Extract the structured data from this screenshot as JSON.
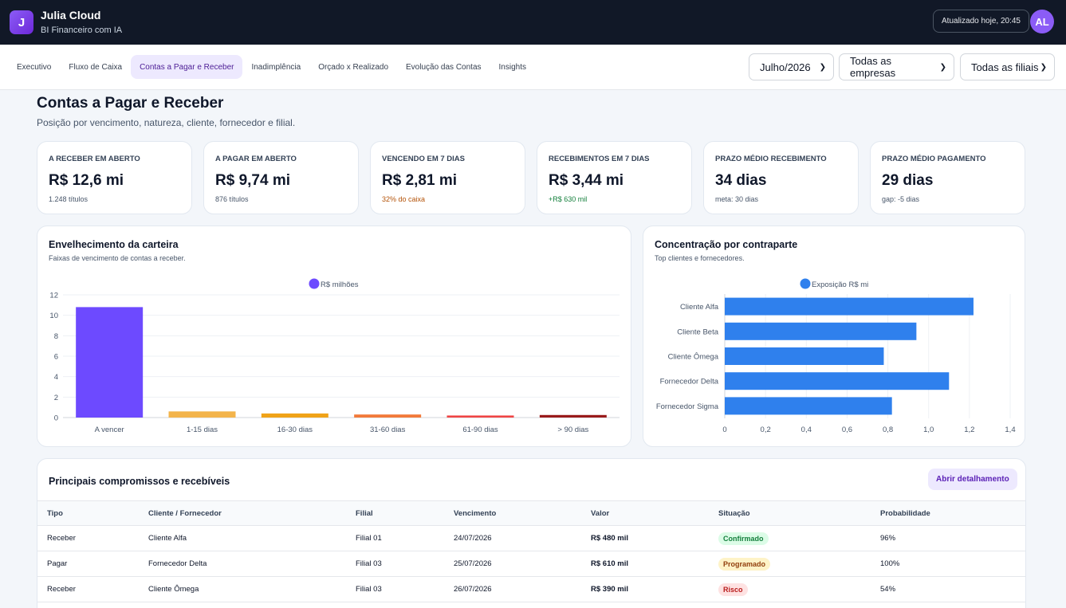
{
  "header": {
    "logo_letter": "J",
    "title": "Julia Cloud",
    "subtitle": "BI Financeiro com IA",
    "updated": "Atualizado hoje, 20:45",
    "avatar": "AL"
  },
  "nav": {
    "tabs": [
      {
        "label": "Executivo",
        "active": false
      },
      {
        "label": "Fluxo de Caixa",
        "active": false
      },
      {
        "label": "Contas a Pagar e Receber",
        "active": true
      },
      {
        "label": "Inadimplência",
        "active": false
      },
      {
        "label": "Orçado x Realizado",
        "active": false
      },
      {
        "label": "Evolução das Contas",
        "active": false
      },
      {
        "label": "Insights",
        "active": false
      }
    ],
    "filters": {
      "period": "Julho/2026",
      "company": "Todas as empresas",
      "branch": "Todas as filiais"
    }
  },
  "page": {
    "title": "Contas a Pagar e Receber",
    "subtitle": "Posição por vencimento, natureza, cliente, fornecedor e filial."
  },
  "kpis": [
    {
      "label": "A RECEBER EM ABERTO",
      "value": "R$ 12,6 mi",
      "note": "1.248 títulos",
      "note_color": "#475569"
    },
    {
      "label": "A PAGAR EM ABERTO",
      "value": "R$ 9,74 mi",
      "note": "876 títulos",
      "note_color": "#475569"
    },
    {
      "label": "VENCENDO EM 7 DIAS",
      "value": "R$ 2,81 mi",
      "note": "32% do caixa",
      "note_color": "#b45309"
    },
    {
      "label": "RECEBIMENTOS EM 7 DIAS",
      "value": "R$ 3,44 mi",
      "note": "+R$ 630 mil",
      "note_color": "#15803d"
    },
    {
      "label": "PRAZO MÉDIO RECEBIMENTO",
      "value": "34 dias",
      "note": "meta: 30 dias",
      "note_color": "#475569"
    },
    {
      "label": "PRAZO MÉDIO PAGAMENTO",
      "value": "29 dias",
      "note": "gap: -5 dias",
      "note_color": "#475569"
    }
  ],
  "aging_card": {
    "title": "Envelhecimento da carteira",
    "subtitle": "Faixas de vencimento de contas a receber."
  },
  "conc_card": {
    "title": "Concentração por contraparte",
    "subtitle": "Top clientes e fornecedores."
  },
  "chart_data": [
    {
      "type": "bar",
      "title": "",
      "categories": [
        "A vencer",
        "1-15 dias",
        "16-30 dias",
        "31-60 dias",
        "61-90 dias",
        "> 90 dias"
      ],
      "series": [
        {
          "name": "R$ milhões",
          "values": [
            10.8,
            0.6,
            0.4,
            0.3,
            0.2,
            0.25
          ]
        }
      ],
      "colors": [
        "#6d4aff",
        "#f3b44b",
        "#f0a318",
        "#f27a3a",
        "#ef4444",
        "#991b1b"
      ],
      "yticks": [
        "0",
        "2",
        "4",
        "6",
        "8",
        "10",
        "12"
      ],
      "ylim": [
        0,
        12
      ],
      "legend": "top-center",
      "grid": true
    },
    {
      "type": "bar",
      "orientation": "horizontal",
      "title": "",
      "categories": [
        "Cliente Alfa",
        "Cliente Beta",
        "Cliente Ômega",
        "Fornecedor Delta",
        "Fornecedor Sigma"
      ],
      "series": [
        {
          "name": "Exposição R$ mi",
          "values": [
            1.22,
            0.94,
            0.78,
            1.1,
            0.82
          ]
        }
      ],
      "color": "#2f80ed",
      "xticks": [
        "0",
        "0,2",
        "0,4",
        "0,6",
        "0,8",
        "1,0",
        "1,2",
        "1,4"
      ],
      "xlim": [
        0,
        1.4
      ],
      "legend": "top-center",
      "grid": true
    }
  ],
  "table_card": {
    "title": "Principais compromissos e recebíveis",
    "button": "Abrir detalhamento",
    "headers": [
      "Tipo",
      "Cliente / Fornecedor",
      "Filial",
      "Vencimento",
      "Valor",
      "Situação",
      "Probabilidade"
    ],
    "rows": [
      {
        "tipo": "Receber",
        "contraparte": "Cliente Alfa",
        "filial": "Filial 01",
        "vencimento": "24/07/2026",
        "valor": "R$ 480 mil",
        "situacao": "Confirmado",
        "prob": "96%",
        "badge_bg": "#dcfce7",
        "badge_fg": "#15803d"
      },
      {
        "tipo": "Pagar",
        "contraparte": "Fornecedor Delta",
        "filial": "Filial 03",
        "vencimento": "25/07/2026",
        "valor": "R$ 610 mil",
        "situacao": "Programado",
        "prob": "100%",
        "badge_bg": "#fef3c7",
        "badge_fg": "#92400e"
      },
      {
        "tipo": "Receber",
        "contraparte": "Cliente Ômega",
        "filial": "Filial 03",
        "vencimento": "26/07/2026",
        "valor": "R$ 390 mil",
        "situacao": "Risco",
        "prob": "54%",
        "badge_bg": "#fee2e2",
        "badge_fg": "#b91c1c"
      }
    ]
  }
}
